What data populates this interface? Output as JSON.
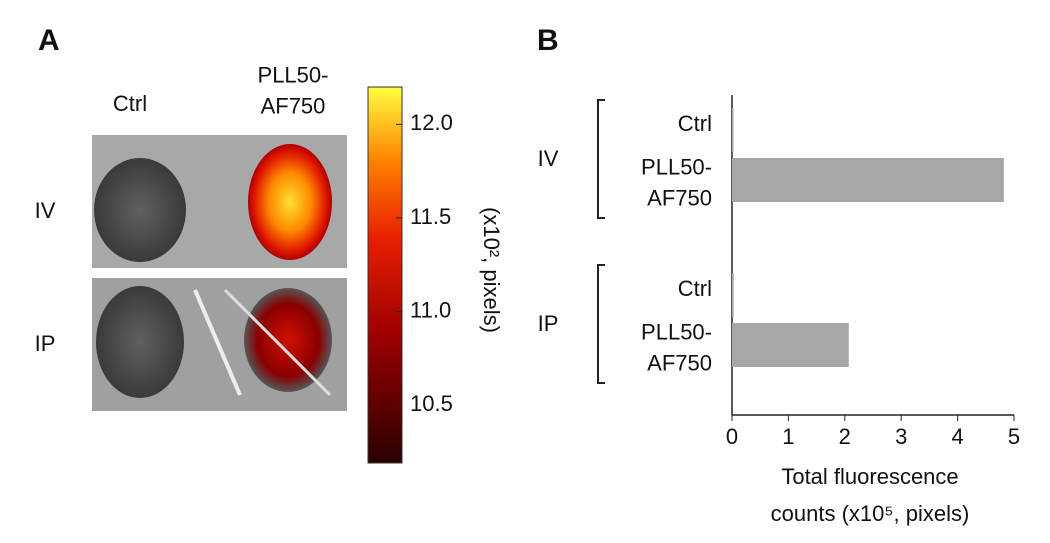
{
  "panel_a": {
    "label": "A",
    "columns": [
      "Ctrl",
      "PLL50-AF750"
    ],
    "rows": [
      "IV",
      "IP"
    ],
    "colorbar": {
      "title": "(x10², pixels)",
      "lim": [
        10.19,
        12.2
      ],
      "ticks": [
        {
          "value": 10.5,
          "label": "10.5"
        },
        {
          "value": 11,
          "label": "11.0"
        },
        {
          "value": 11.5,
          "label": "11.5"
        },
        {
          "value": 12,
          "label": "12.0"
        }
      ]
    }
  },
  "chart_data": {
    "type": "bar",
    "orientation": "horizontal",
    "panel_label": "B",
    "groups": [
      {
        "name": "IV",
        "categories": [
          "Ctrl",
          "PLL50-AF750"
        ],
        "values": [
          0.02,
          4.82
        ]
      },
      {
        "name": "IP",
        "categories": [
          "Ctrl",
          "PLL50-AF750"
        ],
        "values": [
          0.03,
          2.07
        ]
      }
    ],
    "color": "#a6a6a6",
    "xlim": [
      0,
      5
    ],
    "xticks": [
      0,
      1,
      2,
      3,
      4,
      5
    ],
    "xlabel": [
      "Total fluorescence",
      "counts (x10⁵, pixels)"
    ]
  }
}
